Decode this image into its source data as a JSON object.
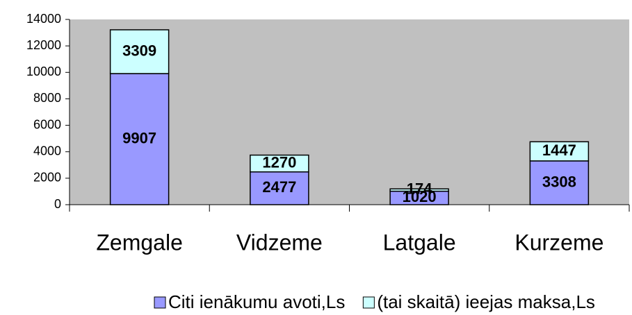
{
  "chart_data": {
    "type": "bar",
    "stacked": true,
    "categories": [
      "Zemgale",
      "Vidzeme",
      "Latgale",
      "Kurzeme"
    ],
    "series": [
      {
        "name": "Citi ienākumu avoti,Ls",
        "color": "#9999ff",
        "values": [
          9907,
          2477,
          1020,
          3308
        ]
      },
      {
        "name": "(tai skaitā) ieejas maksa,Ls",
        "color": "#ccffff",
        "values": [
          3309,
          1270,
          174,
          1447
        ]
      }
    ],
    "ylim": [
      0,
      14000
    ],
    "yticks": [
      0,
      2000,
      4000,
      6000,
      8000,
      10000,
      12000,
      14000
    ],
    "plot_background": "#c0c0c0",
    "legend": "bottom"
  }
}
